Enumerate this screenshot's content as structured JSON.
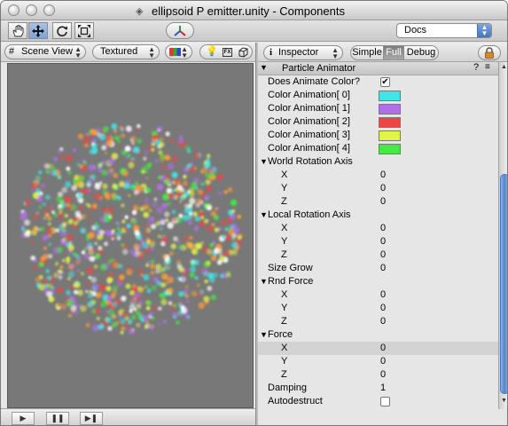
{
  "window": {
    "title": "ellipsoid P emitter.unity - Components",
    "title_icon": "unity-document-icon"
  },
  "toolbar": {
    "tools": [
      "hand-tool-icon",
      "move-tool-icon",
      "rotate-tool-icon",
      "scale-tool-icon"
    ],
    "active_tool": "move-tool-icon",
    "layers_icon": "layers-icon",
    "layout_popup": "Docs"
  },
  "scene": {
    "view_popup": "Scene View",
    "render_popup": "Textured",
    "icons": [
      "color-swatch-icon",
      "light-bulb-icon",
      "fx-icon",
      "cube-icon"
    ],
    "background": "#777877",
    "play_controls": [
      "play-icon",
      "pause-icon",
      "step-icon"
    ]
  },
  "inspector": {
    "popup": "Inspector",
    "modes": [
      "Simple",
      "Full",
      "Debug"
    ],
    "selected_mode": "Full",
    "component": {
      "name": "Particle Animator",
      "help": "?",
      "gear": "≡"
    },
    "rows": [
      {
        "label": "Does  Animate  Color?",
        "checkbox": true,
        "checked": true
      },
      {
        "label": "Color Animation[ 0]",
        "color": "#3ee6ea"
      },
      {
        "label": "Color Animation[ 1]",
        "color": "#b06ee8"
      },
      {
        "label": "Color Animation[ 2]",
        "color": "#f04545"
      },
      {
        "label": "Color Animation[ 3]",
        "color": "#e2f448"
      },
      {
        "label": "Color Animation[ 4]",
        "color": "#44ea44"
      },
      {
        "label": "World Rotation Axis",
        "foldout": true
      },
      {
        "label": "X",
        "value": "0",
        "indent": 2
      },
      {
        "label": "Y",
        "value": "0",
        "indent": 2
      },
      {
        "label": "Z",
        "value": "0",
        "indent": 2
      },
      {
        "label": "Local Rotation Axis",
        "foldout": true
      },
      {
        "label": "X",
        "value": "0",
        "indent": 2
      },
      {
        "label": "Y",
        "value": "0",
        "indent": 2
      },
      {
        "label": "Z",
        "value": "0",
        "indent": 2
      },
      {
        "label": "Size Grow",
        "value": "0"
      },
      {
        "label": "Rnd Force",
        "foldout": true
      },
      {
        "label": "X",
        "value": "0",
        "indent": 2
      },
      {
        "label": "Y",
        "value": "0",
        "indent": 2
      },
      {
        "label": "Z",
        "value": "0",
        "indent": 2
      },
      {
        "label": "Force",
        "foldout": true
      },
      {
        "label": "X",
        "value": "0",
        "indent": 2,
        "highlight": true
      },
      {
        "label": "Y",
        "value": "0",
        "indent": 2
      },
      {
        "label": "Z",
        "value": "0",
        "indent": 2
      },
      {
        "label": "Damping",
        "value": "1"
      },
      {
        "label": "Autodestruct",
        "checkbox": true,
        "checked": false
      }
    ]
  }
}
